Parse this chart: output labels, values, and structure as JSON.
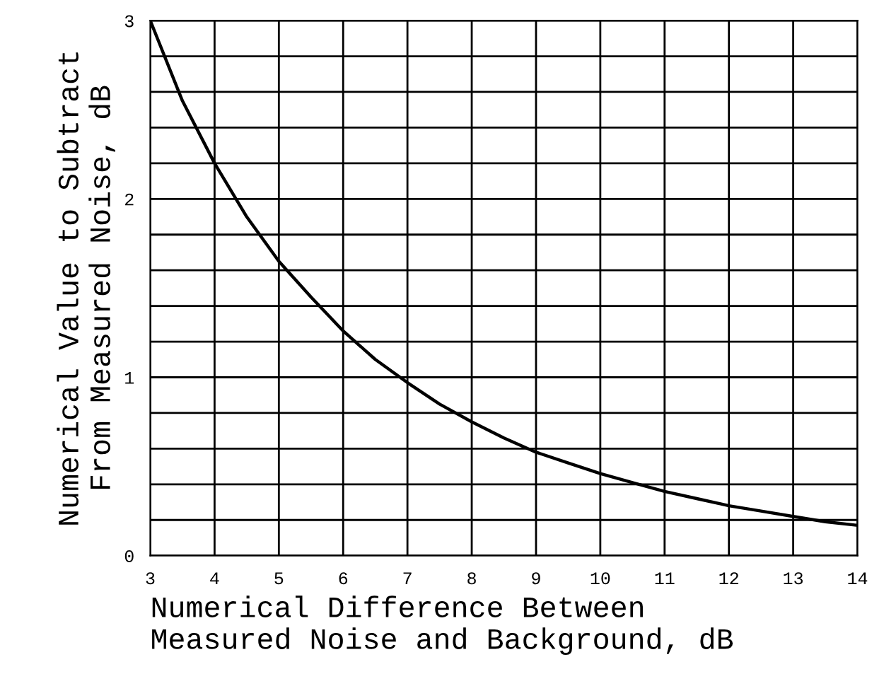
{
  "chart_data": {
    "type": "line",
    "xlabel": "Numerical Difference Between\nMeasured Noise and Background, dB",
    "ylabel": "Numerical Value to Subtract\nFrom Measured Noise, dB",
    "x": [
      3,
      3.5,
      4,
      4.5,
      5,
      5.5,
      6,
      6.5,
      7,
      7.5,
      8,
      8.5,
      9,
      9.5,
      10,
      10.5,
      11,
      11.5,
      12,
      12.5,
      13,
      13.5,
      14
    ],
    "series": [
      {
        "color": "#000000",
        "values": [
          3.0,
          2.55,
          2.2,
          1.9,
          1.65,
          1.45,
          1.26,
          1.1,
          0.97,
          0.85,
          0.75,
          0.66,
          0.58,
          0.52,
          0.46,
          0.41,
          0.36,
          0.32,
          0.28,
          0.25,
          0.22,
          0.19,
          0.17
        ]
      }
    ],
    "xlim": [
      3,
      14
    ],
    "ylim": [
      0,
      3
    ],
    "xticks": [
      3,
      4,
      5,
      6,
      7,
      8,
      9,
      10,
      11,
      12,
      13,
      14
    ],
    "yticks": [
      0,
      {
        "value": 0.2,
        "label": null
      },
      {
        "value": 0.4,
        "label": null
      },
      {
        "value": 0.6,
        "label": null
      },
      {
        "value": 0.8,
        "label": null
      },
      1,
      {
        "value": 1.2,
        "label": null
      },
      {
        "value": 1.4,
        "label": null
      },
      {
        "value": 1.6,
        "label": null
      },
      {
        "value": 1.8,
        "label": null
      },
      2,
      {
        "value": 2.2,
        "label": null
      },
      {
        "value": 2.4,
        "label": null
      },
      {
        "value": 2.6,
        "label": null
      },
      {
        "value": 2.8,
        "label": null
      },
      3
    ],
    "grid": true,
    "marker": "none",
    "line_style": "solid"
  }
}
